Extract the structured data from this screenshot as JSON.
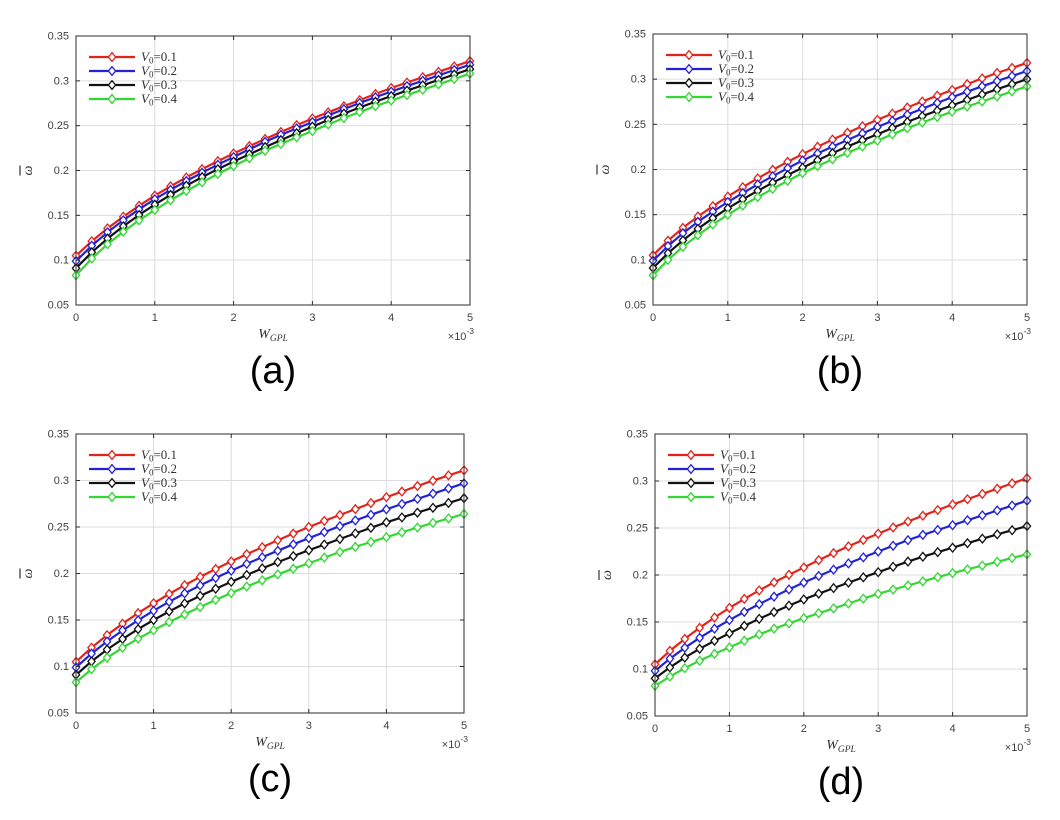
{
  "figure": {
    "background": "#ffffff",
    "axis": {
      "xlabel": {
        "base": "W",
        "sub": "GPL"
      },
      "ylabel": {
        "base": "ω",
        "overbar": true
      },
      "x_exponent": {
        "base": "×10",
        "exp": "-3"
      },
      "xticks": [
        "0",
        "1",
        "2",
        "3",
        "4",
        "5"
      ],
      "yticks": [
        "0.05",
        "0.1",
        "0.15",
        "0.2",
        "0.25",
        "0.3",
        "0.35"
      ],
      "xlim": [
        0,
        5
      ],
      "ylim": [
        0.05,
        0.35
      ],
      "x_scale": "1e-3",
      "grid": true
    },
    "legend": {
      "position": "top-left",
      "items": [
        {
          "base": "V",
          "sub": "0",
          "rest": "=0.1",
          "color": "#e2231a"
        },
        {
          "base": "V",
          "sub": "0",
          "rest": "=0.2",
          "color": "#2222d6"
        },
        {
          "base": "V",
          "sub": "0",
          "rest": "=0.3",
          "color": "#121212"
        },
        {
          "base": "V",
          "sub": "0",
          "rest": "=0.4",
          "color": "#33d633"
        }
      ]
    },
    "colors": {
      "grid": "#dcdcdc",
      "axis_box": "#2b2b2b",
      "tick_text": "#3f3f3f",
      "label_text": "#333333",
      "caption": "#000000",
      "marker_face": "#ffffff"
    }
  },
  "chart_data": [
    {
      "panel": "a",
      "caption": "(a)",
      "type": "line",
      "xlabel": "W_GPL",
      "ylabel": "omega-bar",
      "x_unit": "×10^-3",
      "xlim": [
        0,
        5
      ],
      "ylim": [
        0.05,
        0.35
      ],
      "grid": true,
      "marker": "diamond",
      "marker_step": 0.2,
      "x": [
        0,
        0.5,
        1,
        1.5,
        2,
        2.5,
        3,
        3.5,
        4,
        4.5,
        5
      ],
      "series": [
        {
          "name": "V0=0.1",
          "color": "#e2231a",
          "values": [
            0.105,
            0.142,
            0.172,
            0.197,
            0.219,
            0.239,
            0.258,
            0.275,
            0.292,
            0.307,
            0.322
          ]
        },
        {
          "name": "V0=0.2",
          "color": "#2222d6",
          "values": [
            0.099,
            0.138,
            0.168,
            0.193,
            0.215,
            0.236,
            0.254,
            0.272,
            0.288,
            0.303,
            0.318
          ]
        },
        {
          "name": "V0=0.3",
          "color": "#121212",
          "values": [
            0.091,
            0.131,
            0.162,
            0.188,
            0.21,
            0.23,
            0.249,
            0.267,
            0.283,
            0.298,
            0.313
          ]
        },
        {
          "name": "V0=0.4",
          "color": "#33d633",
          "values": [
            0.083,
            0.125,
            0.156,
            0.182,
            0.205,
            0.226,
            0.244,
            0.262,
            0.278,
            0.293,
            0.308
          ]
        }
      ]
    },
    {
      "panel": "b",
      "caption": "(b)",
      "type": "line",
      "xlabel": "W_GPL",
      "ylabel": "omega-bar",
      "x_unit": "×10^-3",
      "xlim": [
        0,
        5
      ],
      "ylim": [
        0.05,
        0.35
      ],
      "grid": true,
      "marker": "diamond",
      "marker_step": 0.2,
      "x": [
        0,
        0.5,
        1,
        1.5,
        2,
        2.5,
        3,
        3.5,
        4,
        4.5,
        5
      ],
      "series": [
        {
          "name": "V0=0.1",
          "color": "#e2231a",
          "values": [
            0.105,
            0.142,
            0.17,
            0.195,
            0.217,
            0.237,
            0.255,
            0.272,
            0.288,
            0.304,
            0.318
          ]
        },
        {
          "name": "V0=0.2",
          "color": "#2222d6",
          "values": [
            0.099,
            0.136,
            0.164,
            0.188,
            0.21,
            0.229,
            0.247,
            0.264,
            0.28,
            0.295,
            0.309
          ]
        },
        {
          "name": "V0=0.3",
          "color": "#121212",
          "values": [
            0.091,
            0.128,
            0.157,
            0.181,
            0.202,
            0.222,
            0.239,
            0.256,
            0.271,
            0.286,
            0.3
          ]
        },
        {
          "name": "V0=0.4",
          "color": "#33d633",
          "values": [
            0.083,
            0.121,
            0.15,
            0.174,
            0.196,
            0.215,
            0.232,
            0.249,
            0.264,
            0.278,
            0.292
          ]
        }
      ]
    },
    {
      "panel": "c",
      "caption": "(c)",
      "type": "line",
      "xlabel": "W_GPL",
      "ylabel": "omega-bar",
      "x_unit": "×10^-3",
      "xlim": [
        0,
        5
      ],
      "ylim": [
        0.05,
        0.35
      ],
      "grid": true,
      "marker": "diamond",
      "marker_step": 0.2,
      "x": [
        0,
        0.5,
        1,
        1.5,
        2,
        2.5,
        3,
        3.5,
        4,
        4.5,
        5
      ],
      "series": [
        {
          "name": "V0=0.1",
          "color": "#e2231a",
          "values": [
            0.105,
            0.14,
            0.168,
            0.192,
            0.213,
            0.232,
            0.25,
            0.266,
            0.282,
            0.297,
            0.311
          ]
        },
        {
          "name": "V0=0.2",
          "color": "#2222d6",
          "values": [
            0.099,
            0.133,
            0.16,
            0.183,
            0.203,
            0.221,
            0.238,
            0.254,
            0.269,
            0.283,
            0.297
          ]
        },
        {
          "name": "V0=0.3",
          "color": "#121212",
          "values": [
            0.091,
            0.124,
            0.15,
            0.172,
            0.191,
            0.209,
            0.225,
            0.24,
            0.255,
            0.268,
            0.281
          ]
        },
        {
          "name": "V0=0.4",
          "color": "#33d633",
          "values": [
            0.083,
            0.115,
            0.139,
            0.16,
            0.179,
            0.196,
            0.211,
            0.226,
            0.239,
            0.252,
            0.264
          ]
        }
      ]
    },
    {
      "panel": "d",
      "caption": "(d)",
      "type": "line",
      "xlabel": "W_GPL",
      "ylabel": "omega-bar",
      "x_unit": "×10^-3",
      "xlim": [
        0,
        5
      ],
      "ylim": [
        0.05,
        0.35
      ],
      "grid": true,
      "marker": "diamond",
      "marker_step": 0.2,
      "x": [
        0,
        0.5,
        1,
        1.5,
        2,
        2.5,
        3,
        3.5,
        4,
        4.5,
        5
      ],
      "series": [
        {
          "name": "V0=0.1",
          "color": "#e2231a",
          "values": [
            0.105,
            0.138,
            0.165,
            0.188,
            0.208,
            0.227,
            0.244,
            0.26,
            0.275,
            0.289,
            0.303
          ]
        },
        {
          "name": "V0=0.2",
          "color": "#2222d6",
          "values": [
            0.098,
            0.128,
            0.152,
            0.173,
            0.192,
            0.209,
            0.225,
            0.24,
            0.253,
            0.266,
            0.279
          ]
        },
        {
          "name": "V0=0.3",
          "color": "#121212",
          "values": [
            0.09,
            0.117,
            0.138,
            0.157,
            0.174,
            0.189,
            0.203,
            0.217,
            0.229,
            0.241,
            0.252
          ]
        },
        {
          "name": "V0=0.4",
          "color": "#33d633",
          "values": [
            0.082,
            0.105,
            0.123,
            0.14,
            0.154,
            0.167,
            0.18,
            0.191,
            0.202,
            0.212,
            0.222
          ]
        }
      ]
    }
  ]
}
